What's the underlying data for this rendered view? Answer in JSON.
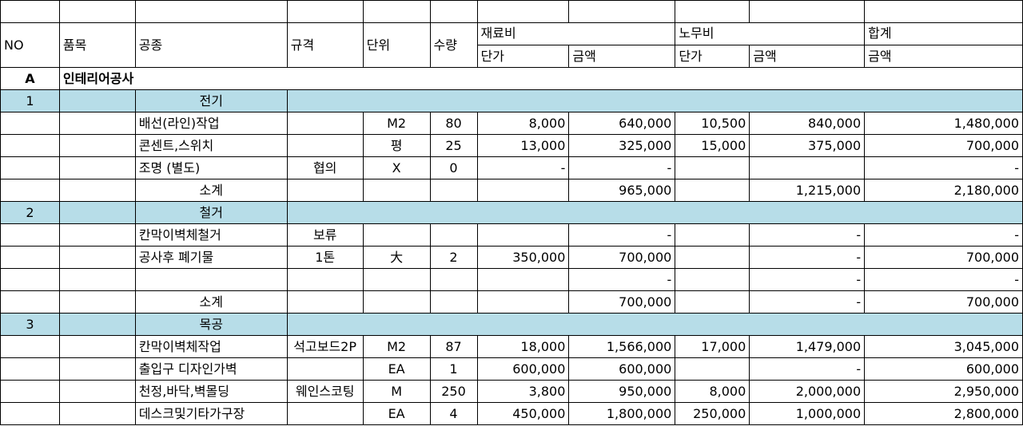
{
  "header": {
    "no": "NO",
    "item": "품목",
    "trade": "공종",
    "spec": "규격",
    "unit": "단위",
    "qty": "수량",
    "material": "재료비",
    "labor": "노무비",
    "total": "합계",
    "unit_price": "단가",
    "amount": "금액"
  },
  "group": {
    "no": "A",
    "name": "인테리어공사"
  },
  "sections": [
    {
      "no": "1",
      "title": "전기",
      "rows": [
        {
          "trade": "배선(라인)작업",
          "spec": "",
          "unit": "M2",
          "qty": "80",
          "m_price": "8,000",
          "m_amt": "640,000",
          "l_price": "10,500",
          "l_amt": "840,000",
          "total": "1,480,000"
        },
        {
          "trade": "콘센트,스위치",
          "spec": "",
          "unit": "평",
          "qty": "25",
          "m_price": "13,000",
          "m_amt": "325,000",
          "l_price": "15,000",
          "l_amt": "375,000",
          "total": "700,000"
        },
        {
          "trade": "조명  (별도)",
          "spec": "협의",
          "unit": "X",
          "qty": "0",
          "m_price": "-",
          "m_amt": "-",
          "l_price": "",
          "l_amt": "",
          "total": "-"
        }
      ],
      "subtotal": {
        "label": "소계",
        "m_amt": "965,000",
        "l_amt": "1,215,000",
        "total": "2,180,000"
      }
    },
    {
      "no": "2",
      "title": "철거",
      "rows": [
        {
          "trade": "칸막이벽체철거",
          "spec": "보류",
          "unit": "",
          "qty": "",
          "m_price": "",
          "m_amt": "-",
          "l_price": "",
          "l_amt": "-",
          "total": "-"
        },
        {
          "trade": "공사후 폐기물",
          "spec": "1톤",
          "unit": "大",
          "qty": "2",
          "m_price": "350,000",
          "m_amt": "700,000",
          "l_price": "",
          "l_amt": "-",
          "total": "700,000"
        },
        {
          "trade": "",
          "spec": "",
          "unit": "",
          "qty": "",
          "m_price": "",
          "m_amt": "-",
          "l_price": "",
          "l_amt": "-",
          "total": "-"
        }
      ],
      "subtotal": {
        "label": "소계",
        "m_amt": "700,000",
        "l_amt": "-",
        "total": "700,000"
      }
    },
    {
      "no": "3",
      "title": "목공",
      "rows": [
        {
          "trade": "칸막이벽체작업",
          "spec": "석고보드2P",
          "unit": "M2",
          "qty": "87",
          "m_price": "18,000",
          "m_amt": "1,566,000",
          "l_price": "17,000",
          "l_amt": "1,479,000",
          "total": "3,045,000"
        },
        {
          "trade": "출입구 디자인가벽",
          "spec": "",
          "unit": "EA",
          "qty": "1",
          "m_price": "600,000",
          "m_amt": "600,000",
          "l_price": "",
          "l_amt": "-",
          "total": "600,000"
        },
        {
          "trade": "천정,바닥,벽몰딩",
          "spec": "웨인스코팅",
          "unit": "M",
          "qty": "250",
          "m_price": "3,800",
          "m_amt": "950,000",
          "l_price": "8,000",
          "l_amt": "2,000,000",
          "total": "2,950,000"
        },
        {
          "trade": "데스크및기타가구장",
          "spec": "",
          "unit": "EA",
          "qty": "4",
          "m_price": "450,000",
          "m_amt": "1,800,000",
          "l_price": "250,000",
          "l_amt": "1,000,000",
          "total": "2,800,000"
        }
      ]
    }
  ]
}
